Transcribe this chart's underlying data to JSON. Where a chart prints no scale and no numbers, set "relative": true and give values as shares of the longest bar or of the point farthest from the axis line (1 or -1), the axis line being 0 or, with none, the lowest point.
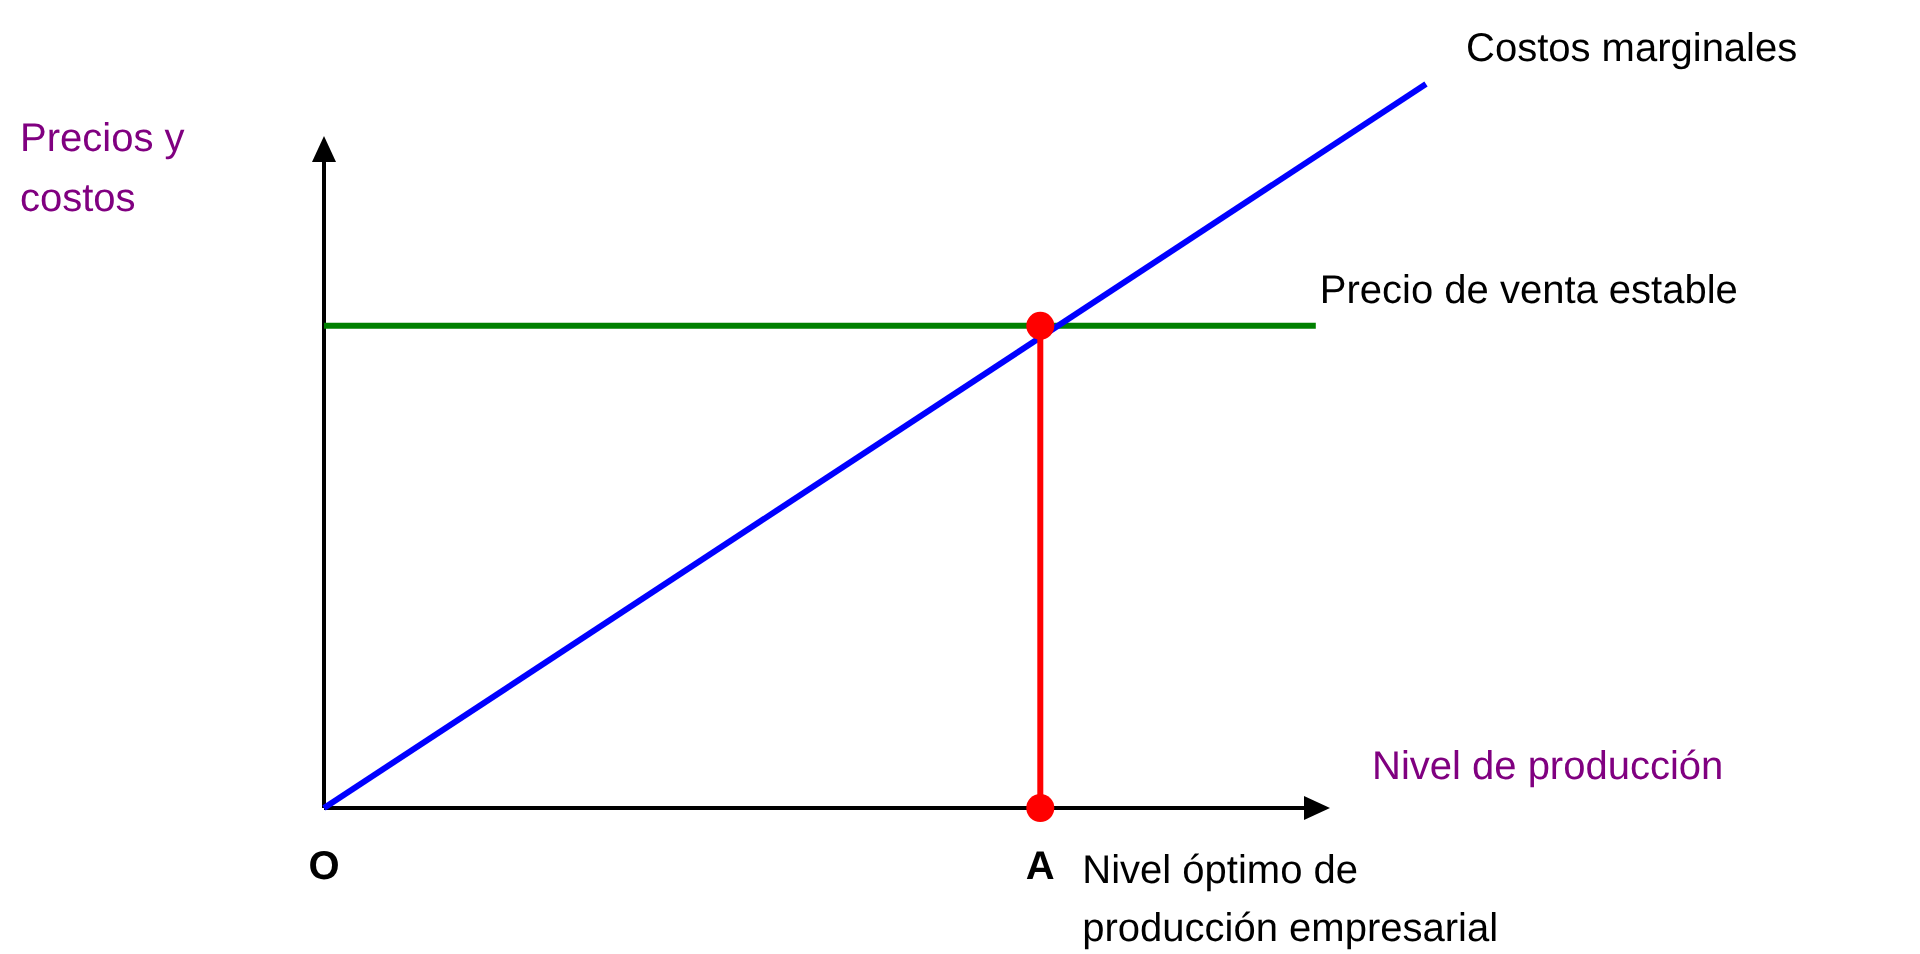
{
  "chart_data": {
    "type": "line",
    "relative": true,
    "xlabel": "Nivel de producción",
    "ylabel": "Precios y costos",
    "categories": [
      "O",
      null,
      null,
      null,
      null,
      null,
      null,
      null,
      null,
      null,
      null,
      null,
      null,
      "A",
      null,
      null,
      null,
      null,
      null,
      null,
      null
    ],
    "series": [
      {
        "name": "Costos marginales",
        "color": "#0000ff",
        "values": [
          0,
          null,
          null,
          null,
          null,
          null,
          null,
          null,
          null,
          null,
          null,
          null,
          null,
          null,
          null,
          null,
          null,
          null,
          null,
          null,
          1
        ]
      },
      {
        "name": "Precio de venta estable",
        "color": "#008000",
        "values": [
          0.666,
          null,
          null,
          null,
          null,
          null,
          null,
          null,
          null,
          null,
          null,
          null,
          null,
          null,
          null,
          null,
          null,
          null,
          0.666,
          null,
          null
        ]
      },
      {
        "type": "scatter",
        "color": "#ff0000",
        "x": [
          "A",
          "A"
        ],
        "values": [
          0,
          0.666
        ],
        "marker": "circle"
      }
    ],
    "annotations": [
      {
        "text": "Nivel óptimo de producción empresarial",
        "x": "A",
        "y": 0
      }
    ]
  }
}
